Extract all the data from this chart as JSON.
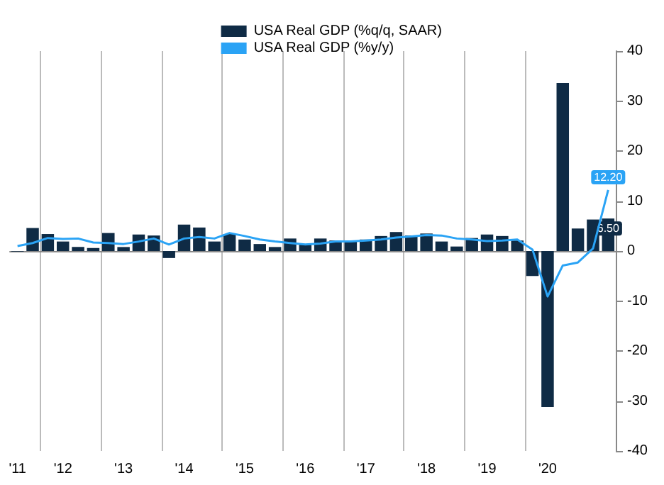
{
  "chart_data": {
    "type": "bar",
    "categories": [
      "'11",
      null,
      null,
      "'12",
      null,
      null,
      null,
      "'13",
      null,
      null,
      null,
      "'14",
      null,
      null,
      null,
      "'15",
      null,
      null,
      null,
      "'16",
      null,
      null,
      null,
      "'17",
      null,
      null,
      null,
      "'18",
      null,
      null,
      null,
      "'19",
      null,
      null,
      null,
      "'20",
      null,
      null,
      null,
      null
    ],
    "series": [
      {
        "name": "USA Real GDP (%q/q, SAAR)",
        "color": "#0f2b45",
        "values": [
          -0.1,
          4.6,
          3.4,
          1.9,
          0.8,
          0.6,
          3.6,
          0.8,
          3.3,
          3.1,
          -1.4,
          5.3,
          4.7,
          1.9,
          3.4,
          2.3,
          1.4,
          0.8,
          2.5,
          1.4,
          2.5,
          2.1,
          2.1,
          2.3,
          3.0,
          3.8,
          3.1,
          3.5,
          1.9,
          0.9,
          2.6,
          3.3,
          3.0,
          2.1,
          -5.0,
          -31.2,
          33.6,
          4.5,
          6.3,
          6.5
        ],
        "value_labels": [
          null,
          null,
          null,
          null,
          null,
          null,
          null,
          null,
          null,
          null,
          null,
          null,
          null,
          null,
          null,
          null,
          null,
          null,
          null,
          null,
          null,
          null,
          null,
          null,
          null,
          null,
          null,
          null,
          null,
          null,
          null,
          null,
          null,
          null,
          null,
          null,
          null,
          null,
          null,
          "6.50"
        ]
      },
      {
        "name": "USA Real GDP (%y/y)",
        "type": "line",
        "color": "#2aa3f5",
        "values": [
          1.0,
          1.6,
          2.6,
          2.4,
          2.5,
          1.7,
          1.6,
          1.4,
          1.9,
          2.5,
          1.3,
          2.5,
          2.8,
          2.5,
          3.6,
          3.0,
          2.3,
          1.9,
          1.6,
          1.3,
          1.5,
          1.9,
          1.9,
          2.1,
          2.3,
          2.7,
          2.9,
          3.2,
          3.1,
          2.5,
          2.3,
          2.0,
          2.1,
          2.3,
          0.3,
          -9.1,
          -2.9,
          -2.3,
          0.5,
          12.2
        ],
        "value_labels": [
          null,
          null,
          null,
          null,
          null,
          null,
          null,
          null,
          null,
          null,
          null,
          null,
          null,
          null,
          null,
          null,
          null,
          null,
          null,
          null,
          null,
          null,
          null,
          null,
          null,
          null,
          null,
          null,
          null,
          null,
          null,
          null,
          null,
          null,
          null,
          null,
          null,
          null,
          null,
          "12.20"
        ]
      }
    ],
    "ylim": [
      -40,
      40
    ],
    "yticks": [
      -40,
      -30,
      -20,
      -10,
      0,
      10,
      20,
      30,
      40
    ],
    "grid": "x",
    "legend": "top",
    "marker": "none"
  }
}
